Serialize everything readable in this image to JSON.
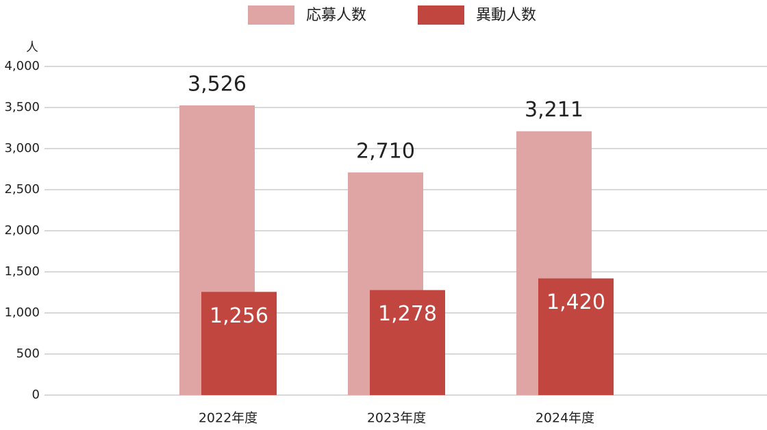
{
  "chart_data": {
    "type": "bar",
    "y_unit": "人",
    "categories": [
      "2022年度",
      "2023年度",
      "2024年度"
    ],
    "series": [
      {
        "name": "応募人数",
        "color": "#dfa5a4",
        "values": [
          3526,
          2710,
          3211
        ],
        "value_labels": [
          "3,526",
          "2,710",
          "3,211"
        ]
      },
      {
        "name": "異動人数",
        "color": "#c0463f",
        "values": [
          1256,
          1278,
          1420
        ],
        "value_labels": [
          "1,256",
          "1,278",
          "1,420"
        ]
      }
    ],
    "ylim": [
      0,
      4000
    ],
    "yticks": [
      0,
      500,
      {
        "value": 1000,
        "label": "1,000"
      },
      {
        "value": 1500,
        "label": "1,500"
      },
      {
        "value": 2000,
        "label": "2,000"
      },
      {
        "value": 2500,
        "label": "2,500"
      },
      {
        "value": 3000,
        "label": "3,000"
      },
      {
        "value": 3500,
        "label": "3,500"
      },
      {
        "value": 4000,
        "label": "4,000"
      }
    ],
    "grid": true
  }
}
